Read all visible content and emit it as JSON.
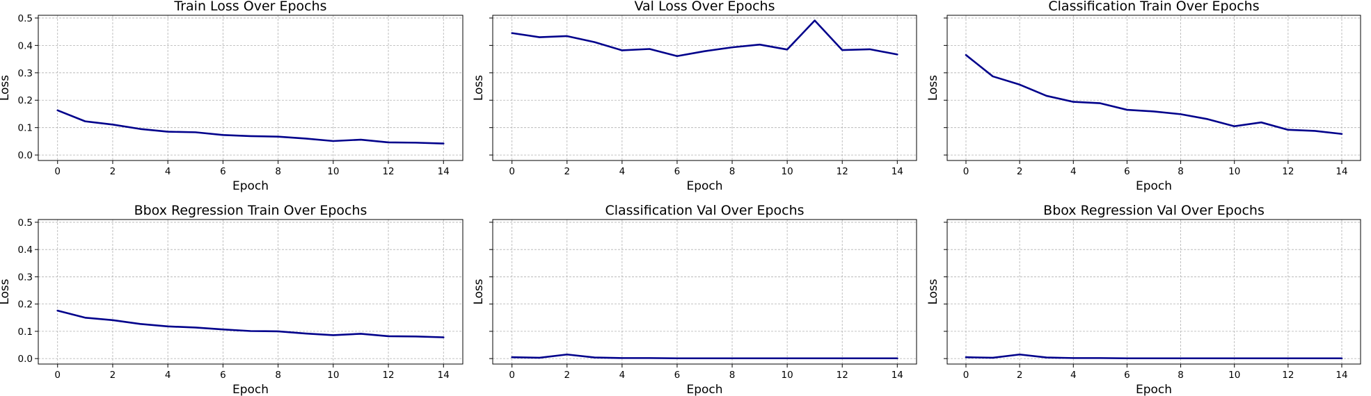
{
  "chart_data": [
    {
      "type": "line",
      "title": "Train Loss Over Epochs",
      "xlabel": "Epoch",
      "ylabel": "Loss",
      "xlim": [
        -0.7,
        14.7
      ],
      "ylim": [
        -0.02,
        0.51
      ],
      "xticks": [
        0,
        2,
        4,
        6,
        8,
        10,
        12,
        14
      ],
      "yticks": [
        0.0,
        0.1,
        0.2,
        0.3,
        0.4,
        0.5
      ],
      "show_ytick_labels": true,
      "grid": true,
      "x": [
        0,
        1,
        2,
        3,
        4,
        5,
        6,
        7,
        8,
        9,
        10,
        11,
        12,
        13,
        14
      ],
      "series": [
        {
          "values": [
            0.163,
            0.123,
            0.111,
            0.095,
            0.085,
            0.083,
            0.073,
            0.069,
            0.067,
            0.06,
            0.051,
            0.056,
            0.046,
            0.045,
            0.042
          ]
        }
      ]
    },
    {
      "type": "line",
      "title": "Val Loss Over Epochs",
      "xlabel": "Epoch",
      "ylabel": "Loss",
      "xlim": [
        -0.7,
        14.7
      ],
      "ylim": [
        -0.02,
        0.51
      ],
      "xticks": [
        0,
        2,
        4,
        6,
        8,
        10,
        12,
        14
      ],
      "yticks": [
        0.0,
        0.1,
        0.2,
        0.3,
        0.4,
        0.5
      ],
      "show_ytick_labels": false,
      "grid": true,
      "x": [
        0,
        1,
        2,
        3,
        4,
        5,
        6,
        7,
        8,
        9,
        10,
        11,
        12,
        13,
        14
      ],
      "series": [
        {
          "values": [
            0.445,
            0.43,
            0.434,
            0.412,
            0.382,
            0.387,
            0.361,
            0.379,
            0.393,
            0.403,
            0.385,
            0.491,
            0.383,
            0.386,
            0.367
          ]
        }
      ]
    },
    {
      "type": "line",
      "title": "Classification Train Over Epochs",
      "xlabel": "Epoch",
      "ylabel": "Loss",
      "xlim": [
        -0.7,
        14.7
      ],
      "ylim": [
        -0.02,
        0.51
      ],
      "xticks": [
        0,
        2,
        4,
        6,
        8,
        10,
        12,
        14
      ],
      "yticks": [
        0.0,
        0.1,
        0.2,
        0.3,
        0.4,
        0.5
      ],
      "show_ytick_labels": false,
      "grid": true,
      "x": [
        0,
        1,
        2,
        3,
        4,
        5,
        6,
        7,
        8,
        9,
        10,
        11,
        12,
        13,
        14
      ],
      "series": [
        {
          "values": [
            0.365,
            0.287,
            0.257,
            0.216,
            0.194,
            0.189,
            0.165,
            0.159,
            0.149,
            0.131,
            0.105,
            0.119,
            0.092,
            0.088,
            0.077
          ]
        }
      ]
    },
    {
      "type": "line",
      "title": "Bbox Regression Train Over Epochs",
      "xlabel": "Epoch",
      "ylabel": "Loss",
      "xlim": [
        -0.7,
        14.7
      ],
      "ylim": [
        -0.02,
        0.51
      ],
      "xticks": [
        0,
        2,
        4,
        6,
        8,
        10,
        12,
        14
      ],
      "yticks": [
        0.0,
        0.1,
        0.2,
        0.3,
        0.4,
        0.5
      ],
      "show_ytick_labels": true,
      "grid": true,
      "x": [
        0,
        1,
        2,
        3,
        4,
        5,
        6,
        7,
        8,
        9,
        10,
        11,
        12,
        13,
        14
      ],
      "series": [
        {
          "values": [
            0.176,
            0.15,
            0.141,
            0.127,
            0.118,
            0.114,
            0.107,
            0.101,
            0.1,
            0.092,
            0.086,
            0.091,
            0.082,
            0.081,
            0.078
          ]
        }
      ]
    },
    {
      "type": "line",
      "title": "Classification Val Over Epochs",
      "xlabel": "Epoch",
      "ylabel": "Loss",
      "xlim": [
        -0.7,
        14.7
      ],
      "ylim": [
        -0.02,
        0.51
      ],
      "xticks": [
        0,
        2,
        4,
        6,
        8,
        10,
        12,
        14
      ],
      "yticks": [
        0.0,
        0.1,
        0.2,
        0.3,
        0.4,
        0.5
      ],
      "show_ytick_labels": false,
      "grid": true,
      "x": [
        0,
        1,
        2,
        3,
        4,
        5,
        6,
        7,
        8,
        9,
        10,
        11,
        12,
        13,
        14
      ],
      "series": [
        {
          "values": [
            0.005,
            0.003,
            0.015,
            0.004,
            0.002,
            0.002,
            0.001,
            0.001,
            0.001,
            0.001,
            0.001,
            0.001,
            0.001,
            0.001,
            0.001
          ]
        }
      ]
    },
    {
      "type": "line",
      "title": "Bbox Regression Val Over Epochs",
      "xlabel": "Epoch",
      "ylabel": "Loss",
      "xlim": [
        -0.7,
        14.7
      ],
      "ylim": [
        -0.02,
        0.51
      ],
      "xticks": [
        0,
        2,
        4,
        6,
        8,
        10,
        12,
        14
      ],
      "yticks": [
        0.0,
        0.1,
        0.2,
        0.3,
        0.4,
        0.5
      ],
      "show_ytick_labels": false,
      "grid": true,
      "x": [
        0,
        1,
        2,
        3,
        4,
        5,
        6,
        7,
        8,
        9,
        10,
        11,
        12,
        13,
        14
      ],
      "series": [
        {
          "values": [
            0.005,
            0.003,
            0.015,
            0.004,
            0.002,
            0.002,
            0.001,
            0.001,
            0.001,
            0.001,
            0.001,
            0.001,
            0.001,
            0.001,
            0.001
          ]
        }
      ]
    }
  ],
  "colors": {
    "line": "#00008b",
    "grid": "#b0b0b0",
    "frame": "#000000"
  }
}
